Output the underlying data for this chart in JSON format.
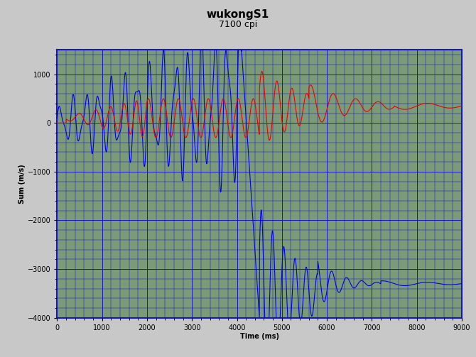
{
  "title": "wukongS1",
  "subtitle": "7100 cpi",
  "xlabel": "Time (ms)",
  "ylabel": "Sum (m/s)",
  "xlim": [
    0,
    9000
  ],
  "ylim": [
    -4000,
    1500
  ],
  "xticks": [
    0,
    1000,
    2000,
    3000,
    4000,
    5000,
    6000,
    7000,
    8000,
    9000
  ],
  "yticks": [
    -4000,
    -3000,
    -2000,
    -1000,
    0,
    1000
  ],
  "background_color": "#7a9a78",
  "grid_color": "#1515cc",
  "figure_bg": "#c8c8c8",
  "blue_color": "#0000ee",
  "red_color": "#ee0000",
  "title_fontsize": 11,
  "subtitle_fontsize": 9,
  "axis_label_fontsize": 7,
  "tick_fontsize": 7,
  "major_grid_minor_x": 500,
  "major_grid_minor_y": 500,
  "fine_grid_x": 100,
  "fine_grid_y": 100
}
